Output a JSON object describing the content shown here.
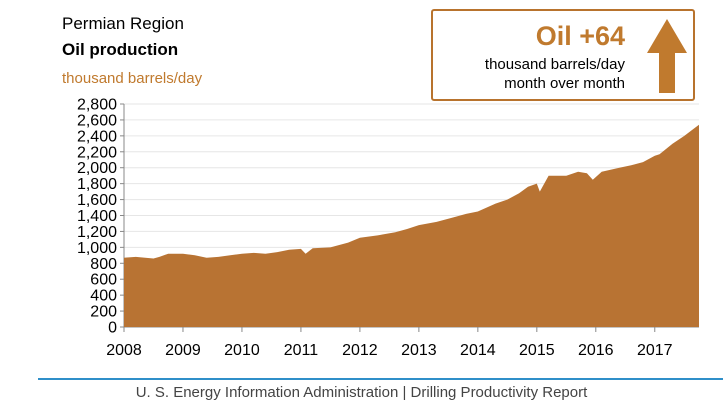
{
  "header": {
    "region": "Permian Region",
    "subtitle": "Oil production",
    "units": "thousand barrels/day"
  },
  "callout": {
    "value": "Oil +64",
    "line1": "thousand barrels/day",
    "line2": "month over month",
    "color": "#c07a2e"
  },
  "footer": {
    "text": "U. S. Energy Information Administration  |  Drilling Productivity Report",
    "rule_color": "#2f8fc9"
  },
  "chart_data": {
    "type": "area",
    "title": "Oil production",
    "ylabel": "thousand barrels/day",
    "xlabel": "",
    "ylim": [
      0,
      2800
    ],
    "xlim": [
      2008,
      2017.75
    ],
    "yticks": [
      0,
      200,
      400,
      600,
      800,
      1000,
      1200,
      1400,
      1600,
      1800,
      2000,
      2200,
      2400,
      2600,
      2800
    ],
    "ytick_labels": [
      "0",
      "200",
      "400",
      "600",
      "800",
      "1,000",
      "1,200",
      "1,400",
      "1,600",
      "1,800",
      "2,000",
      "2,200",
      "2,400",
      "2,600",
      "2,800"
    ],
    "xticks": [
      2008,
      2009,
      2010,
      2011,
      2012,
      2013,
      2014,
      2015,
      2016,
      2017
    ],
    "xtick_labels": [
      "2008",
      "2009",
      "2010",
      "2011",
      "2012",
      "2013",
      "2014",
      "2015",
      "2016",
      "2017"
    ],
    "fill_color": "#b87333",
    "series": [
      {
        "name": "Oil production",
        "x": [
          2008.0,
          2008.2,
          2008.5,
          2008.6,
          2008.75,
          2009.0,
          2009.2,
          2009.4,
          2009.6,
          2009.8,
          2010.0,
          2010.2,
          2010.4,
          2010.6,
          2010.8,
          2011.0,
          2011.08,
          2011.2,
          2011.5,
          2011.8,
          2012.0,
          2012.3,
          2012.6,
          2012.8,
          2013.0,
          2013.3,
          2013.6,
          2013.8,
          2014.0,
          2014.3,
          2014.5,
          2014.7,
          2014.85,
          2015.0,
          2015.05,
          2015.2,
          2015.5,
          2015.7,
          2015.85,
          2015.95,
          2016.1,
          2016.4,
          2016.6,
          2016.8,
          2017.0,
          2017.08,
          2017.3,
          2017.5,
          2017.75
        ],
        "values": [
          870,
          880,
          860,
          880,
          920,
          920,
          900,
          870,
          880,
          900,
          920,
          930,
          920,
          940,
          970,
          980,
          920,
          990,
          1000,
          1060,
          1120,
          1150,
          1190,
          1230,
          1280,
          1320,
          1380,
          1420,
          1450,
          1550,
          1600,
          1680,
          1760,
          1800,
          1700,
          1900,
          1900,
          1950,
          1930,
          1850,
          1950,
          2000,
          2030,
          2070,
          2150,
          2170,
          2300,
          2400,
          2540
        ]
      }
    ]
  }
}
